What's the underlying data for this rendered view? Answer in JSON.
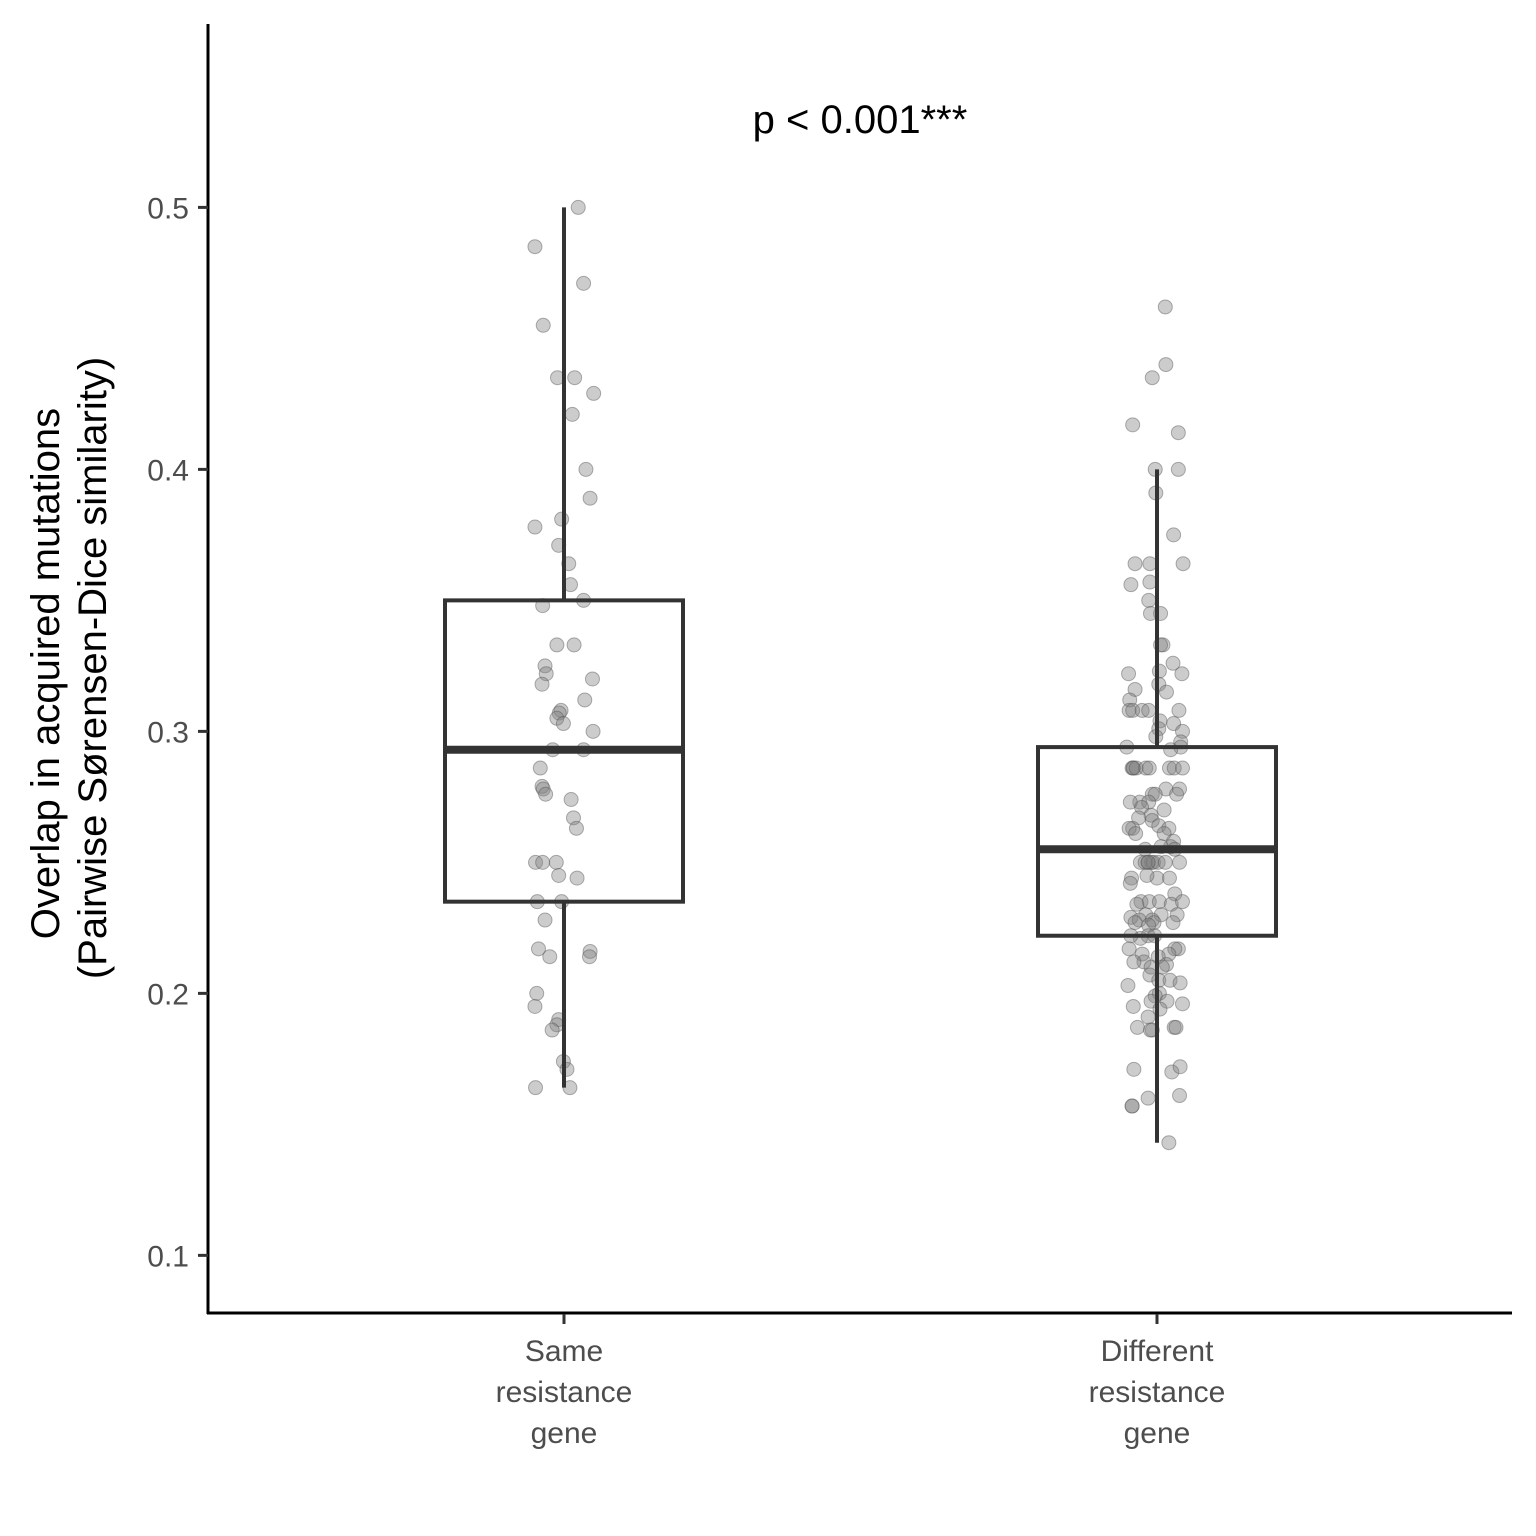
{
  "chart_data": {
    "type": "box",
    "ylabel": [
      "Overlap in acquired mutations",
      "(Pairwise Sørensen-Dice similarity)"
    ],
    "xlabel": "",
    "ylim": [
      0.078,
      0.57
    ],
    "yticks": [
      0.1,
      0.2,
      0.3,
      0.4,
      0.5
    ],
    "annotation": "p < 0.001***",
    "grid": false,
    "legend": "none",
    "colors": {
      "box": "#333333",
      "axis": "#000000",
      "point": "#808080",
      "tick_text": "#4d4d4d"
    },
    "categories": [
      {
        "label": [
          "Same",
          "resistance",
          "gene"
        ],
        "box": {
          "whisker_low": 0.164,
          "q1": 0.235,
          "median": 0.293,
          "q3": 0.35,
          "whisker_high": 0.5
        },
        "points": [
          {
            "x": 0.024,
            "y": 0.5
          },
          {
            "x": -0.049,
            "y": 0.485
          },
          {
            "x": 0.033,
            "y": 0.471
          },
          {
            "x": -0.035,
            "y": 0.455
          },
          {
            "x": -0.011,
            "y": 0.435
          },
          {
            "x": 0.018,
            "y": 0.435
          },
          {
            "x": 0.05,
            "y": 0.429
          },
          {
            "x": 0.014,
            "y": 0.421
          },
          {
            "x": 0.037,
            "y": 0.4
          },
          {
            "x": 0.044,
            "y": 0.389
          },
          {
            "x": -0.004,
            "y": 0.381
          },
          {
            "x": -0.049,
            "y": 0.378
          },
          {
            "x": -0.009,
            "y": 0.371
          },
          {
            "x": 0.008,
            "y": 0.364
          },
          {
            "x": 0.011,
            "y": 0.356
          },
          {
            "x": 0.033,
            "y": 0.35
          },
          {
            "x": -0.036,
            "y": 0.348
          },
          {
            "x": -0.012,
            "y": 0.333
          },
          {
            "x": 0.017,
            "y": 0.333
          },
          {
            "x": -0.032,
            "y": 0.325
          },
          {
            "x": -0.03,
            "y": 0.322
          },
          {
            "x": 0.048,
            "y": 0.32
          },
          {
            "x": -0.037,
            "y": 0.318
          },
          {
            "x": 0.035,
            "y": 0.312
          },
          {
            "x": -0.005,
            "y": 0.308
          },
          {
            "x": -0.008,
            "y": 0.307
          },
          {
            "x": -0.012,
            "y": 0.305
          },
          {
            "x": -0.001,
            "y": 0.303
          },
          {
            "x": 0.049,
            "y": 0.3
          },
          {
            "x": -0.019,
            "y": 0.293
          },
          {
            "x": 0.033,
            "y": 0.293
          },
          {
            "x": -0.04,
            "y": 0.286
          },
          {
            "x": -0.037,
            "y": 0.279
          },
          {
            "x": -0.035,
            "y": 0.278
          },
          {
            "x": -0.031,
            "y": 0.276
          },
          {
            "x": 0.012,
            "y": 0.274
          },
          {
            "x": 0.016,
            "y": 0.267
          },
          {
            "x": 0.021,
            "y": 0.263
          },
          {
            "x": -0.048,
            "y": 0.25
          },
          {
            "x": -0.036,
            "y": 0.25
          },
          {
            "x": -0.013,
            "y": 0.25
          },
          {
            "x": -0.009,
            "y": 0.245
          },
          {
            "x": 0.022,
            "y": 0.244
          },
          {
            "x": -0.045,
            "y": 0.235
          },
          {
            "x": -0.004,
            "y": 0.235
          },
          {
            "x": -0.032,
            "y": 0.228
          },
          {
            "x": -0.043,
            "y": 0.217
          },
          {
            "x": 0.044,
            "y": 0.216
          },
          {
            "x": 0.043,
            "y": 0.214
          },
          {
            "x": -0.024,
            "y": 0.214
          },
          {
            "x": -0.046,
            "y": 0.2
          },
          {
            "x": -0.049,
            "y": 0.195
          },
          {
            "x": -0.009,
            "y": 0.19
          },
          {
            "x": -0.012,
            "y": 0.188
          },
          {
            "x": -0.02,
            "y": 0.186
          },
          {
            "x": -0.001,
            "y": 0.174
          },
          {
            "x": 0.005,
            "y": 0.171
          },
          {
            "x": -0.048,
            "y": 0.164
          },
          {
            "x": 0.01,
            "y": 0.164
          }
        ]
      },
      {
        "label": [
          "Different",
          "resistance",
          "gene"
        ],
        "box": {
          "whisker_low": 0.143,
          "q1": 0.222,
          "median": 0.255,
          "q3": 0.294,
          "whisker_high": 0.4
        },
        "points": [
          {
            "x": 0.014,
            "y": 0.462
          },
          {
            "x": 0.015,
            "y": 0.44
          },
          {
            "x": -0.008,
            "y": 0.435
          },
          {
            "x": -0.041,
            "y": 0.417
          },
          {
            "x": 0.036,
            "y": 0.414
          },
          {
            "x": -0.003,
            "y": 0.4
          },
          {
            "x": 0.036,
            "y": 0.4
          },
          {
            "x": -0.002,
            "y": 0.391
          },
          {
            "x": 0.028,
            "y": 0.375
          },
          {
            "x": -0.037,
            "y": 0.364
          },
          {
            "x": -0.012,
            "y": 0.364
          },
          {
            "x": 0.044,
            "y": 0.364
          },
          {
            "x": -0.044,
            "y": 0.356
          },
          {
            "x": -0.012,
            "y": 0.357
          },
          {
            "x": -0.014,
            "y": 0.35
          },
          {
            "x": 0.006,
            "y": 0.345
          },
          {
            "x": -0.011,
            "y": 0.345
          },
          {
            "x": 0.01,
            "y": 0.333
          },
          {
            "x": 0.006,
            "y": 0.333
          },
          {
            "x": 0.027,
            "y": 0.326
          },
          {
            "x": 0.042,
            "y": 0.322
          },
          {
            "x": -0.048,
            "y": 0.322
          },
          {
            "x": 0.004,
            "y": 0.323
          },
          {
            "x": 0.003,
            "y": 0.318
          },
          {
            "x": -0.037,
            "y": 0.316
          },
          {
            "x": 0.016,
            "y": 0.315
          },
          {
            "x": -0.046,
            "y": 0.312
          },
          {
            "x": -0.047,
            "y": 0.308
          },
          {
            "x": -0.041,
            "y": 0.308
          },
          {
            "x": -0.025,
            "y": 0.308
          },
          {
            "x": -0.014,
            "y": 0.308
          },
          {
            "x": 0.037,
            "y": 0.308
          },
          {
            "x": 0.005,
            "y": 0.304
          },
          {
            "x": 0.028,
            "y": 0.303
          },
          {
            "x": 0.003,
            "y": 0.301
          },
          {
            "x": 0.043,
            "y": 0.3
          },
          {
            "x": -0.002,
            "y": 0.298
          },
          {
            "x": 0.04,
            "y": 0.296
          },
          {
            "x": -0.051,
            "y": 0.294
          },
          {
            "x": 0.04,
            "y": 0.294
          },
          {
            "x": 0.023,
            "y": 0.293
          },
          {
            "x": -0.04,
            "y": 0.286
          },
          {
            "x": -0.042,
            "y": 0.286
          },
          {
            "x": -0.04,
            "y": 0.286
          },
          {
            "x": -0.035,
            "y": 0.286
          },
          {
            "x": -0.019,
            "y": 0.286
          },
          {
            "x": 0.021,
            "y": 0.286
          },
          {
            "x": 0.029,
            "y": 0.286
          },
          {
            "x": 0.043,
            "y": 0.286
          },
          {
            "x": -0.013,
            "y": 0.286
          },
          {
            "x": 0.015,
            "y": 0.278
          },
          {
            "x": 0.038,
            "y": 0.278
          },
          {
            "x": -0.008,
            "y": 0.276
          },
          {
            "x": 0.033,
            "y": 0.276
          },
          {
            "x": -0.003,
            "y": 0.276
          },
          {
            "x": -0.029,
            "y": 0.273
          },
          {
            "x": -0.014,
            "y": 0.273
          },
          {
            "x": -0.045,
            "y": 0.273
          },
          {
            "x": -0.026,
            "y": 0.271
          },
          {
            "x": 0.012,
            "y": 0.27
          },
          {
            "x": -0.01,
            "y": 0.268
          },
          {
            "x": -0.031,
            "y": 0.267
          },
          {
            "x": -0.008,
            "y": 0.266
          },
          {
            "x": 0.003,
            "y": 0.264
          },
          {
            "x": -0.041,
            "y": 0.263
          },
          {
            "x": 0.02,
            "y": 0.263
          },
          {
            "x": -0.047,
            "y": 0.263
          },
          {
            "x": -0.036,
            "y": 0.261
          },
          {
            "x": 0.012,
            "y": 0.261
          },
          {
            "x": 0.028,
            "y": 0.258
          },
          {
            "x": 0.023,
            "y": 0.256
          },
          {
            "x": 0.03,
            "y": 0.255
          },
          {
            "x": 0.007,
            "y": 0.256
          },
          {
            "x": -0.02,
            "y": 0.255
          },
          {
            "x": -0.028,
            "y": 0.25
          },
          {
            "x": -0.015,
            "y": 0.25
          },
          {
            "x": -0.009,
            "y": 0.25
          },
          {
            "x": -0.006,
            "y": 0.25
          },
          {
            "x": 0.002,
            "y": 0.25
          },
          {
            "x": 0.014,
            "y": 0.25
          },
          {
            "x": -0.02,
            "y": 0.25
          },
          {
            "x": -0.015,
            "y": 0.25
          },
          {
            "x": 0.038,
            "y": 0.25
          },
          {
            "x": -0.043,
            "y": 0.244
          },
          {
            "x": 0.0,
            "y": 0.244
          },
          {
            "x": 0.021,
            "y": 0.244
          },
          {
            "x": -0.045,
            "y": 0.242
          },
          {
            "x": -0.017,
            "y": 0.245
          },
          {
            "x": 0.03,
            "y": 0.238
          },
          {
            "x": -0.027,
            "y": 0.235
          },
          {
            "x": -0.013,
            "y": 0.235
          },
          {
            "x": 0.004,
            "y": 0.235
          },
          {
            "x": 0.024,
            "y": 0.234
          },
          {
            "x": 0.043,
            "y": 0.235
          },
          {
            "x": -0.034,
            "y": 0.234
          },
          {
            "x": -0.019,
            "y": 0.23
          },
          {
            "x": 0.007,
            "y": 0.23
          },
          {
            "x": -0.044,
            "y": 0.229
          },
          {
            "x": -0.008,
            "y": 0.228
          },
          {
            "x": -0.03,
            "y": 0.228
          },
          {
            "x": 0.034,
            "y": 0.23
          },
          {
            "x": 0.027,
            "y": 0.227
          },
          {
            "x": -0.005,
            "y": 0.227
          },
          {
            "x": -0.037,
            "y": 0.227
          },
          {
            "x": -0.014,
            "y": 0.226
          },
          {
            "x": -0.015,
            "y": 0.222
          },
          {
            "x": -0.004,
            "y": 0.222
          },
          {
            "x": -0.028,
            "y": 0.221
          },
          {
            "x": -0.044,
            "y": 0.222
          },
          {
            "x": 0.036,
            "y": 0.217
          },
          {
            "x": 0.03,
            "y": 0.217
          },
          {
            "x": -0.047,
            "y": 0.217
          },
          {
            "x": -0.025,
            "y": 0.215
          },
          {
            "x": 0.02,
            "y": 0.215
          },
          {
            "x": 0.002,
            "y": 0.214
          },
          {
            "x": -0.022,
            "y": 0.212
          },
          {
            "x": -0.039,
            "y": 0.212
          },
          {
            "x": 0.016,
            "y": 0.211
          },
          {
            "x": -0.01,
            "y": 0.21
          },
          {
            "x": 0.009,
            "y": 0.21
          },
          {
            "x": -0.012,
            "y": 0.207
          },
          {
            "x": 0.003,
            "y": 0.205
          },
          {
            "x": 0.022,
            "y": 0.205
          },
          {
            "x": 0.039,
            "y": 0.204
          },
          {
            "x": -0.049,
            "y": 0.203
          },
          {
            "x": 0.004,
            "y": 0.2
          },
          {
            "x": -0.003,
            "y": 0.199
          },
          {
            "x": -0.01,
            "y": 0.197
          },
          {
            "x": 0.017,
            "y": 0.197
          },
          {
            "x": 0.043,
            "y": 0.196
          },
          {
            "x": -0.04,
            "y": 0.195
          },
          {
            "x": 0.005,
            "y": 0.194
          },
          {
            "x": -0.015,
            "y": 0.191
          },
          {
            "x": -0.033,
            "y": 0.187
          },
          {
            "x": 0.029,
            "y": 0.187
          },
          {
            "x": 0.032,
            "y": 0.187
          },
          {
            "x": -0.008,
            "y": 0.186
          },
          {
            "x": -0.011,
            "y": 0.186
          },
          {
            "x": -0.039,
            "y": 0.171
          },
          {
            "x": 0.025,
            "y": 0.17
          },
          {
            "x": 0.039,
            "y": 0.172
          },
          {
            "x": -0.015,
            "y": 0.16
          },
          {
            "x": 0.038,
            "y": 0.161
          },
          {
            "x": -0.042,
            "y": 0.157
          },
          {
            "x": -0.042,
            "y": 0.157
          },
          {
            "x": 0.02,
            "y": 0.143
          }
        ]
      }
    ]
  }
}
